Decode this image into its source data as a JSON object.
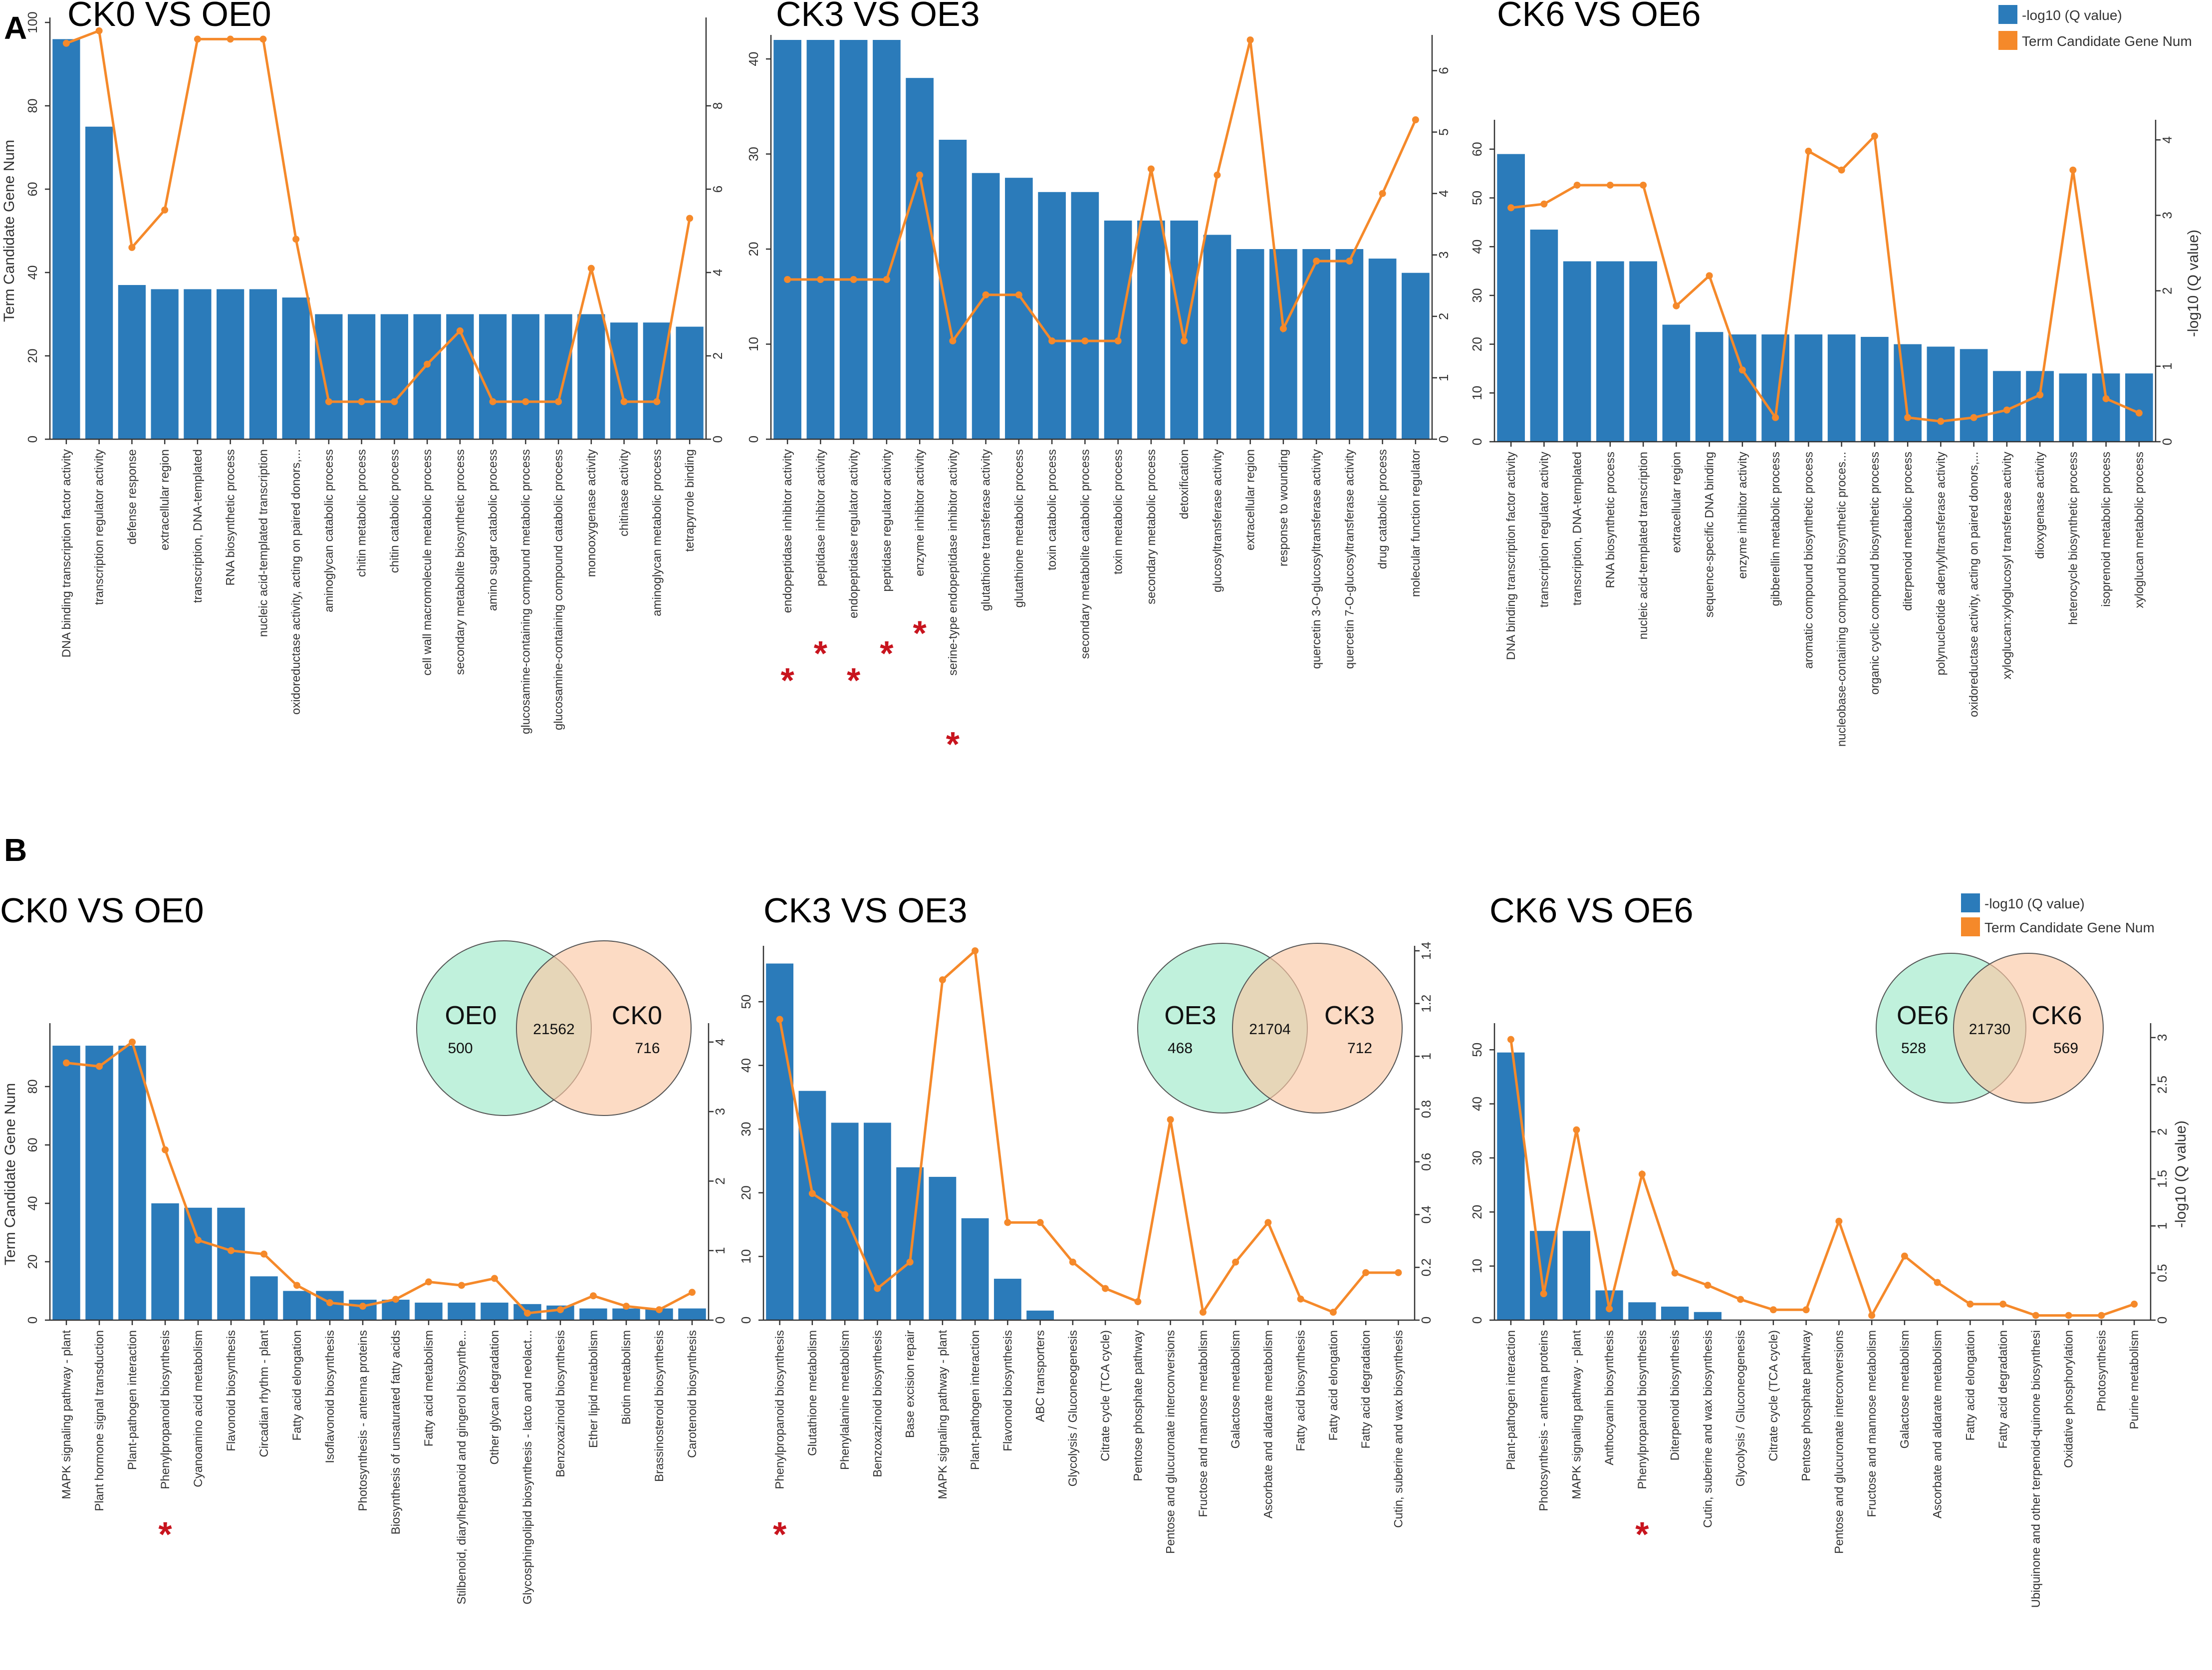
{
  "figure": {
    "panel_a_label": "A",
    "panel_b_label": "B",
    "legend": {
      "bar_label": "-log10 (Q value)",
      "line_label": "Term Candidate Gene Num"
    },
    "colors": {
      "bar": "#2b7bba",
      "line": "#f5892a",
      "venn_left": "#b5efd6",
      "venn_right": "#fbc7a5",
      "star": "#c8141e"
    }
  },
  "chart_data": [
    {
      "id": "A1",
      "type": "bar",
      "title": "CK0 VS OE0",
      "left_axis_label": "Term Candidate Gene Num",
      "right_axis_label": "",
      "left_ylim": [
        0,
        100
      ],
      "left_ticks": [
        0,
        20,
        40,
        60,
        80,
        100
      ],
      "right_ylim": [
        0,
        10
      ],
      "right_ticks": [
        0,
        2,
        4,
        6,
        8
      ],
      "categories": [
        "DNA binding transcription factor activity",
        "transcription regulator activity",
        "defense response",
        "extracellular region",
        "transcription, DNA-templated",
        "RNA biosynthetic process",
        "nucleic acid-templated transcription",
        "oxidoreductase activity, acting on paired donors,...",
        "aminoglycan catabolic process",
        "chitin metabolic process",
        "chitin catabolic process",
        "cell wall macromolecule metabolic process",
        "secondary metabolite biosynthetic process",
        "amino sugar catabolic process",
        "glucosamine-containing compound metabolic process",
        "glucosamine-containing compound catabolic process",
        "monooxygenase activity",
        "chitinase activity",
        "aminoglycan metabolic process",
        "tetrapyrrole binding"
      ],
      "series": [
        {
          "name": "Term Candidate Gene Num",
          "axis": "left",
          "kind": "bar",
          "values": [
            96,
            75,
            37,
            36,
            36,
            36,
            36,
            34,
            30,
            30,
            30,
            30,
            30,
            30,
            30,
            30,
            30,
            28,
            28,
            27
          ]
        },
        {
          "name": "-log10 (Q value)",
          "axis": "right",
          "kind": "line",
          "values": [
            9.5,
            9.8,
            4.6,
            5.5,
            9.6,
            9.6,
            9.6,
            4.8,
            0.9,
            0.9,
            0.9,
            1.8,
            2.6,
            0.9,
            0.9,
            0.9,
            4.1,
            0.9,
            0.9,
            5.3
          ]
        }
      ],
      "stars": []
    },
    {
      "id": "A2",
      "type": "bar",
      "title": "CK3 VS OE3",
      "left_axis_label": "",
      "right_axis_label": "",
      "left_ylim": [
        0,
        42
      ],
      "left_ticks": [
        0,
        10,
        20,
        30,
        40
      ],
      "right_ylim": [
        0,
        6.5
      ],
      "right_ticks": [
        0,
        1,
        2,
        3,
        4,
        5,
        6
      ],
      "categories": [
        "endopeptidase inhibitor activity",
        "peptidase inhibitor activity",
        "endopeptidase regulator activity",
        "peptidase regulator activity",
        "enzyme inhibitor activity",
        "serine-type endopeptidase inhibitor activity",
        "glutathione transferase activity",
        "glutathione metabolic process",
        "toxin catabolic process",
        "secondary metabolite catabolic process",
        "toxin metabolic process",
        "secondary metabolic process",
        "detoxification",
        "glucosyltransferase activity",
        "extracellular region",
        "response to wounding",
        "quercetin 3-O-glucosyltransferase activity",
        "quercetin 7-O-glucosyltransferase activity",
        "drug catabolic process",
        "molecular function regulator"
      ],
      "series": [
        {
          "name": "Term Candidate Gene Num",
          "axis": "left",
          "kind": "bar",
          "values": [
            42,
            42,
            42,
            42,
            38,
            31.5,
            28,
            27.5,
            26,
            26,
            23,
            23,
            23,
            21.5,
            20,
            20,
            20,
            20,
            19,
            17.5
          ]
        },
        {
          "name": "-log10 (Q value)",
          "axis": "right",
          "kind": "line",
          "values": [
            2.6,
            2.6,
            2.6,
            2.6,
            4.3,
            1.6,
            2.35,
            2.35,
            1.6,
            1.6,
            1.6,
            4.4,
            1.6,
            4.3,
            6.5,
            1.8,
            2.9,
            2.9,
            4.0,
            5.2
          ]
        }
      ],
      "stars": [
        0,
        1,
        2,
        3,
        4,
        5
      ]
    },
    {
      "id": "A3",
      "type": "bar",
      "title": "CK6 VS OE6",
      "left_axis_label": "",
      "right_axis_label": "-log10 (Q value)",
      "left_ylim": [
        0,
        65
      ],
      "left_ticks": [
        0,
        10,
        20,
        30,
        40,
        50,
        60
      ],
      "right_ylim": [
        0,
        4.2
      ],
      "right_ticks": [
        0,
        1,
        2,
        3,
        4
      ],
      "categories": [
        "DNA binding transcription factor activity",
        "transcription regulator activity",
        "transcription, DNA-templated",
        "RNA biosynthetic process",
        "nucleic acid-templated transcription",
        "extracellular region",
        "sequence-specific DNA binding",
        "enzyme inhibitor activity",
        "gibberellin metabolic process",
        "aromatic compound biosynthetic process",
        "nucleobase-containing compound biosynthetic proces...",
        "organic cyclic compound biosynthetic process",
        "diterpenoid metabolic process",
        "polynucleotide adenylyltransferase activity",
        "oxidoreductase activity, acting on paired donors,...",
        "xyloglucan:xyloglucosyl transferase activity",
        "dioxygenase activity",
        "heterocycle biosynthetic process",
        "isoprenoid metabolic process",
        "xyloglucan metabolic process"
      ],
      "series": [
        {
          "name": "Term Candidate Gene Num",
          "axis": "left",
          "kind": "bar",
          "values": [
            59,
            43.5,
            37,
            37,
            37,
            24,
            22.5,
            22,
            22,
            22,
            22,
            21.5,
            20,
            19.5,
            19,
            14.5,
            14.5,
            14,
            14,
            14
          ]
        },
        {
          "name": "-log10 (Q value)",
          "axis": "right",
          "kind": "line",
          "values": [
            3.1,
            3.15,
            3.4,
            3.4,
            3.4,
            1.8,
            2.2,
            0.95,
            0.32,
            3.85,
            3.6,
            4.05,
            0.32,
            0.27,
            0.32,
            0.42,
            0.62,
            3.6,
            0.57,
            0.38
          ]
        }
      ],
      "stars": []
    },
    {
      "id": "B1",
      "type": "bar",
      "title": "CK0 VS OE0",
      "left_axis_label": "Term Candidate Gene Num",
      "right_axis_label": "",
      "left_ylim": [
        0,
        100
      ],
      "left_ticks": [
        0,
        20,
        40,
        60,
        80
      ],
      "right_ylim": [
        0,
        4.2
      ],
      "right_ticks": [
        0,
        1,
        2,
        3,
        4
      ],
      "categories": [
        "MAPK signaling pathway - plant",
        "Plant hormone signal transduction",
        "Plant-pathogen interaction",
        "Phenylpropanoid biosynthesis",
        "Cyanoamino acid metabolism",
        "Flavonoid biosynthesis",
        "Circadian rhythm - plant",
        "Fatty acid elongation",
        "Isoflavonoid biosynthesis",
        "Photosynthesis - antenna proteins",
        "Biosynthesis of unsaturated fatty acids",
        "Fatty acid metabolism",
        "Stilbenoid, diarylheptanoid and gingerol biosynthe...",
        "Other glycan degradation",
        "Glycosphingolipid biosynthesis - lacto and neolact...",
        "Benzoxazinoid biosynthesis",
        "Ether lipid metabolism",
        "Biotin metabolism",
        "Brassinosteroid biosynthesis",
        "Carotenoid biosynthesis"
      ],
      "series": [
        {
          "name": "Term Candidate Gene Num",
          "axis": "left",
          "kind": "bar",
          "values": [
            94,
            94,
            94,
            40,
            38.5,
            38.5,
            15,
            10,
            10,
            7,
            7,
            6,
            6,
            6,
            5.5,
            5,
            4,
            4,
            4,
            4
          ]
        },
        {
          "name": "-log10 (Q value)",
          "axis": "right",
          "kind": "line",
          "values": [
            3.7,
            3.65,
            4.0,
            2.45,
            1.15,
            1.0,
            0.95,
            0.5,
            0.25,
            0.2,
            0.3,
            0.55,
            0.5,
            0.6,
            0.1,
            0.15,
            0.35,
            0.2,
            0.15,
            0.4
          ]
        }
      ],
      "stars": [
        3
      ],
      "venn": {
        "left_name": "OE0",
        "right_name": "CK0",
        "left_only": "500",
        "overlap": "21562",
        "right_only": "716"
      }
    },
    {
      "id": "B2",
      "type": "bar",
      "title": "CK3 VS OE3",
      "left_axis_label": "",
      "right_axis_label": "",
      "left_ylim": [
        0,
        58
      ],
      "left_ticks": [
        0,
        10,
        20,
        30,
        40,
        50
      ],
      "right_ylim": [
        0,
        1.4
      ],
      "right_ticks": [
        0,
        0.2,
        0.4,
        0.6,
        0.8,
        1.0,
        1.2,
        1.4
      ],
      "categories": [
        "Phenylpropanoid biosynthesis",
        "Glutathione metabolism",
        "Phenylalanine metabolism",
        "Benzoxazinoid biosynthesis",
        "Base excision repair",
        "MAPK signaling pathway - plant",
        "Plant-pathogen interaction",
        "Flavonoid biosynthesis",
        "ABC transporters",
        "Glycolysis / Gluconeogenesis",
        "Citrate cycle (TCA cycle)",
        "Pentose phosphate pathway",
        "Pentose and glucuronate interconversions",
        "Fructose and mannose metabolism",
        "Galactose metabolism",
        "Ascorbate and aldarate metabolism",
        "Fatty acid biosynthesis",
        "Fatty acid elongation",
        "Fatty acid degradation",
        "Cutin, suberine and wax biosynthesis"
      ],
      "series": [
        {
          "name": "Term Candidate Gene Num",
          "axis": "left",
          "kind": "bar",
          "values": [
            56,
            36,
            31,
            31,
            24,
            22.5,
            16,
            6.5,
            1.5,
            0,
            0,
            0,
            0,
            0,
            0,
            0,
            0,
            0,
            0,
            0
          ]
        },
        {
          "name": "-log10 (Q value)",
          "axis": "right",
          "kind": "line",
          "values": [
            1.14,
            0.48,
            0.4,
            0.12,
            0.22,
            1.29,
            1.4,
            0.37,
            0.37,
            0.22,
            0.12,
            0.07,
            0.76,
            0.03,
            0.22,
            0.37,
            0.08,
            0.03,
            0.18,
            0.18
          ]
        }
      ],
      "stars": [
        0
      ],
      "venn": {
        "left_name": "OE3",
        "right_name": "CK3",
        "left_only": "468",
        "overlap": "21704",
        "right_only": "712"
      }
    },
    {
      "id": "B3",
      "type": "bar",
      "title": "CK6 VS OE6",
      "left_axis_label": "",
      "right_axis_label": "-log10 (Q value)",
      "left_ylim": [
        0,
        54
      ],
      "left_ticks": [
        0,
        10,
        20,
        30,
        40,
        50
      ],
      "right_ylim": [
        0,
        3.1
      ],
      "right_ticks": [
        0,
        0.5,
        1.0,
        1.5,
        2.0,
        2.5,
        3.0
      ],
      "categories": [
        "Plant-pathogen interaction",
        "Photosynthesis - antenna proteins",
        "MAPK signaling pathway - plant",
        "Anthocyanin biosynthesis",
        "Phenylpropanoid biosynthesis",
        "Diterpenoid biosynthesis",
        "Cutin, suberine and wax biosynthesis",
        "Glycolysis / Gluconeogenesis",
        "Citrate cycle (TCA cycle)",
        "Pentose phosphate pathway",
        "Pentose and glucuronate interconversions",
        "Fructose and mannose metabolism",
        "Galactose metabolism",
        "Ascorbate and aldarate metabolism",
        "Fatty acid elongation",
        "Fatty acid degradation",
        "Ubiquinone and other terpenoid-quinone biosynthesi",
        "Oxidative phosphorylation",
        "Photosynthesis",
        "Purine metabolism"
      ],
      "series": [
        {
          "name": "Term Candidate Gene Num",
          "axis": "left",
          "kind": "bar",
          "values": [
            49.5,
            16.5,
            16.5,
            5.5,
            3.3,
            2.5,
            1.5,
            0,
            0,
            0,
            0,
            0,
            0,
            0,
            0,
            0,
            0,
            0,
            0,
            0
          ]
        },
        {
          "name": "-log10 (Q value)",
          "axis": "right",
          "kind": "line",
          "values": [
            2.98,
            0.28,
            2.02,
            0.12,
            1.55,
            0.5,
            0.37,
            0.22,
            0.11,
            0.11,
            1.05,
            0.05,
            0.68,
            0.4,
            0.17,
            0.17,
            0.05,
            0.05,
            0.05,
            0.17
          ]
        }
      ],
      "stars": [
        4
      ],
      "venn": {
        "left_name": "OE6",
        "right_name": "CK6",
        "left_only": "528",
        "overlap": "21730",
        "right_only": "569"
      }
    }
  ]
}
